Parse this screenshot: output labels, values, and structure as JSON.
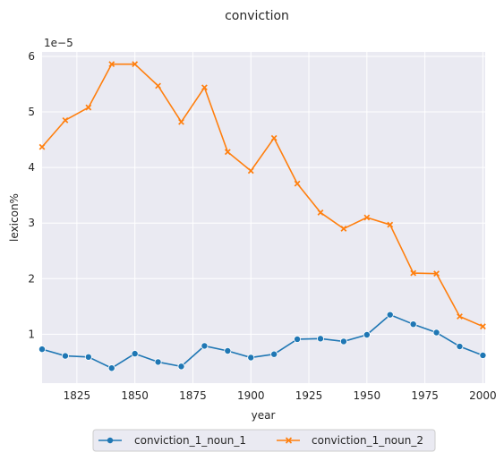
{
  "chart_data": {
    "type": "line",
    "title": "conviction",
    "xlabel": "year",
    "ylabel": "lexicon%",
    "y_offset_label": "1e−5",
    "xlim": [
      1810,
      2001
    ],
    "ylim": [
      0.12,
      6.08
    ],
    "x_ticks": [
      1825,
      1850,
      1875,
      1900,
      1925,
      1950,
      1975,
      2000
    ],
    "y_ticks": [
      1,
      2,
      3,
      4,
      5,
      6
    ],
    "grid": true,
    "legend_position": "bottom-center",
    "x": [
      1810,
      1820,
      1830,
      1840,
      1850,
      1860,
      1870,
      1880,
      1890,
      1900,
      1910,
      1920,
      1930,
      1940,
      1950,
      1960,
      1970,
      1980,
      1990,
      2000
    ],
    "series": [
      {
        "name": "conviction_1_noun_1",
        "color": "#1f77b4",
        "marker": "circle",
        "values": [
          0.73,
          0.61,
          0.59,
          0.39,
          0.65,
          0.5,
          0.42,
          0.79,
          0.7,
          0.58,
          0.64,
          0.91,
          0.92,
          0.87,
          0.99,
          1.35,
          1.18,
          1.03,
          0.78,
          0.62
        ]
      },
      {
        "name": "conviction_1_noun_2",
        "color": "#ff7f0e",
        "marker": "x",
        "values": [
          4.37,
          4.85,
          5.08,
          5.86,
          5.86,
          5.47,
          4.82,
          5.44,
          4.28,
          3.94,
          4.53,
          3.71,
          3.19,
          2.9,
          3.1,
          2.97,
          2.1,
          2.09,
          1.32,
          1.14
        ]
      }
    ]
  }
}
